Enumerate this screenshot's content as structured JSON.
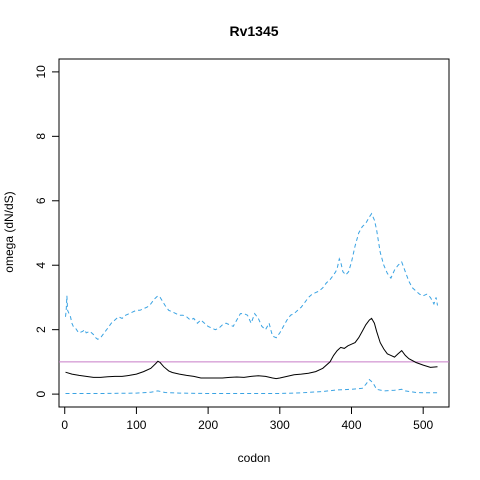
{
  "chart_data": {
    "type": "line",
    "title": "Rv1345",
    "xlabel": "codon",
    "ylabel": "omega (dN/dS)",
    "xlim": [
      -8,
      536
    ],
    "ylim": [
      -0.4,
      10.4
    ],
    "x_ticks": [
      0,
      100,
      200,
      300,
      400,
      500
    ],
    "y_ticks": [
      0,
      2,
      4,
      6,
      8,
      10
    ],
    "grid": false,
    "reference_line": {
      "y": 1,
      "color": "#c77cc7"
    },
    "series": [
      {
        "style": "dashed",
        "color": "#3aa3e3",
        "points": [
          [
            1,
            2.4
          ],
          [
            2,
            2.6
          ],
          [
            3,
            3.05
          ],
          [
            4,
            2.6
          ],
          [
            6,
            2.5
          ],
          [
            8,
            2.4
          ],
          [
            10,
            2.2
          ],
          [
            12,
            2.1
          ],
          [
            15,
            2.05
          ],
          [
            18,
            1.95
          ],
          [
            20,
            1.9
          ],
          [
            25,
            1.95
          ],
          [
            28,
            2.0
          ],
          [
            30,
            1.9
          ],
          [
            35,
            1.95
          ],
          [
            40,
            1.85
          ],
          [
            43,
            1.75
          ],
          [
            46,
            1.7
          ],
          [
            50,
            1.75
          ],
          [
            55,
            1.9
          ],
          [
            60,
            2.05
          ],
          [
            65,
            2.2
          ],
          [
            70,
            2.3
          ],
          [
            75,
            2.4
          ],
          [
            80,
            2.35
          ],
          [
            85,
            2.45
          ],
          [
            90,
            2.5
          ],
          [
            95,
            2.55
          ],
          [
            100,
            2.6
          ],
          [
            105,
            2.6
          ],
          [
            110,
            2.65
          ],
          [
            115,
            2.7
          ],
          [
            120,
            2.8
          ],
          [
            125,
            2.95
          ],
          [
            130,
            3.05
          ],
          [
            133,
            3.0
          ],
          [
            136,
            2.9
          ],
          [
            140,
            2.75
          ],
          [
            145,
            2.6
          ],
          [
            150,
            2.55
          ],
          [
            155,
            2.5
          ],
          [
            160,
            2.45
          ],
          [
            165,
            2.45
          ],
          [
            170,
            2.4
          ],
          [
            175,
            2.3
          ],
          [
            180,
            2.35
          ],
          [
            185,
            2.2
          ],
          [
            190,
            2.3
          ],
          [
            195,
            2.2
          ],
          [
            200,
            2.1
          ],
          [
            205,
            2.05
          ],
          [
            210,
            2.0
          ],
          [
            215,
            2.05
          ],
          [
            220,
            2.15
          ],
          [
            225,
            2.2
          ],
          [
            230,
            2.15
          ],
          [
            235,
            2.1
          ],
          [
            240,
            2.3
          ],
          [
            245,
            2.5
          ],
          [
            250,
            2.5
          ],
          [
            255,
            2.45
          ],
          [
            260,
            2.2
          ],
          [
            265,
            2.5
          ],
          [
            270,
            2.35
          ],
          [
            275,
            2.1
          ],
          [
            280,
            2.0
          ],
          [
            285,
            2.2
          ],
          [
            288,
            1.95
          ],
          [
            290,
            1.8
          ],
          [
            295,
            1.75
          ],
          [
            300,
            1.9
          ],
          [
            305,
            2.1
          ],
          [
            310,
            2.3
          ],
          [
            315,
            2.45
          ],
          [
            320,
            2.5
          ],
          [
            325,
            2.6
          ],
          [
            330,
            2.7
          ],
          [
            335,
            2.85
          ],
          [
            340,
            3.0
          ],
          [
            345,
            3.1
          ],
          [
            350,
            3.15
          ],
          [
            355,
            3.2
          ],
          [
            360,
            3.3
          ],
          [
            365,
            3.45
          ],
          [
            370,
            3.55
          ],
          [
            375,
            3.7
          ],
          [
            378,
            3.8
          ],
          [
            380,
            3.9
          ],
          [
            383,
            4.2
          ],
          [
            385,
            4.1
          ],
          [
            388,
            3.8
          ],
          [
            392,
            3.7
          ],
          [
            396,
            3.8
          ],
          [
            400,
            4.1
          ],
          [
            405,
            4.6
          ],
          [
            410,
            5.0
          ],
          [
            415,
            5.2
          ],
          [
            420,
            5.3
          ],
          [
            425,
            5.5
          ],
          [
            428,
            5.6
          ],
          [
            432,
            5.4
          ],
          [
            435,
            5.1
          ],
          [
            440,
            4.4
          ],
          [
            445,
            4.0
          ],
          [
            450,
            3.75
          ],
          [
            455,
            3.6
          ],
          [
            460,
            3.85
          ],
          [
            465,
            4.0
          ],
          [
            470,
            4.1
          ],
          [
            475,
            3.8
          ],
          [
            480,
            3.5
          ],
          [
            485,
            3.3
          ],
          [
            490,
            3.2
          ],
          [
            495,
            3.1
          ],
          [
            500,
            3.05
          ],
          [
            505,
            3.1
          ],
          [
            510,
            3.0
          ],
          [
            515,
            2.8
          ],
          [
            518,
            3.0
          ],
          [
            520,
            2.75
          ]
        ]
      },
      {
        "style": "solid",
        "color": "#000000",
        "points": [
          [
            1,
            0.68
          ],
          [
            10,
            0.62
          ],
          [
            20,
            0.58
          ],
          [
            30,
            0.55
          ],
          [
            40,
            0.52
          ],
          [
            50,
            0.52
          ],
          [
            60,
            0.54
          ],
          [
            70,
            0.55
          ],
          [
            80,
            0.55
          ],
          [
            90,
            0.58
          ],
          [
            100,
            0.62
          ],
          [
            110,
            0.7
          ],
          [
            120,
            0.8
          ],
          [
            127,
            0.95
          ],
          [
            130,
            1.02
          ],
          [
            133,
            0.98
          ],
          [
            138,
            0.85
          ],
          [
            145,
            0.72
          ],
          [
            150,
            0.67
          ],
          [
            160,
            0.62
          ],
          [
            170,
            0.58
          ],
          [
            180,
            0.55
          ],
          [
            190,
            0.5
          ],
          [
            200,
            0.5
          ],
          [
            210,
            0.5
          ],
          [
            220,
            0.5
          ],
          [
            230,
            0.52
          ],
          [
            240,
            0.53
          ],
          [
            250,
            0.52
          ],
          [
            260,
            0.55
          ],
          [
            270,
            0.57
          ],
          [
            280,
            0.55
          ],
          [
            290,
            0.5
          ],
          [
            295,
            0.48
          ],
          [
            300,
            0.5
          ],
          [
            310,
            0.55
          ],
          [
            320,
            0.6
          ],
          [
            330,
            0.62
          ],
          [
            340,
            0.65
          ],
          [
            350,
            0.7
          ],
          [
            360,
            0.8
          ],
          [
            370,
            1.0
          ],
          [
            375,
            1.2
          ],
          [
            380,
            1.35
          ],
          [
            385,
            1.45
          ],
          [
            390,
            1.42
          ],
          [
            395,
            1.5
          ],
          [
            400,
            1.55
          ],
          [
            405,
            1.6
          ],
          [
            410,
            1.75
          ],
          [
            415,
            1.95
          ],
          [
            420,
            2.15
          ],
          [
            425,
            2.3
          ],
          [
            428,
            2.35
          ],
          [
            432,
            2.2
          ],
          [
            435,
            1.95
          ],
          [
            440,
            1.6
          ],
          [
            445,
            1.4
          ],
          [
            450,
            1.25
          ],
          [
            455,
            1.2
          ],
          [
            460,
            1.15
          ],
          [
            465,
            1.25
          ],
          [
            470,
            1.35
          ],
          [
            475,
            1.2
          ],
          [
            480,
            1.1
          ],
          [
            490,
            0.98
          ],
          [
            500,
            0.9
          ],
          [
            510,
            0.83
          ],
          [
            520,
            0.85
          ]
        ]
      },
      {
        "style": "dashed",
        "color": "#3aa3e3",
        "points": [
          [
            1,
            0.02
          ],
          [
            50,
            0.02
          ],
          [
            100,
            0.03
          ],
          [
            120,
            0.06
          ],
          [
            130,
            0.1
          ],
          [
            140,
            0.05
          ],
          [
            160,
            0.03
          ],
          [
            200,
            0.02
          ],
          [
            250,
            0.02
          ],
          [
            300,
            0.02
          ],
          [
            330,
            0.04
          ],
          [
            360,
            0.08
          ],
          [
            380,
            0.13
          ],
          [
            400,
            0.15
          ],
          [
            415,
            0.18
          ],
          [
            420,
            0.3
          ],
          [
            425,
            0.45
          ],
          [
            430,
            0.35
          ],
          [
            435,
            0.15
          ],
          [
            445,
            0.1
          ],
          [
            460,
            0.12
          ],
          [
            470,
            0.15
          ],
          [
            475,
            0.1
          ],
          [
            490,
            0.05
          ],
          [
            500,
            0.04
          ],
          [
            520,
            0.04
          ]
        ]
      }
    ]
  }
}
